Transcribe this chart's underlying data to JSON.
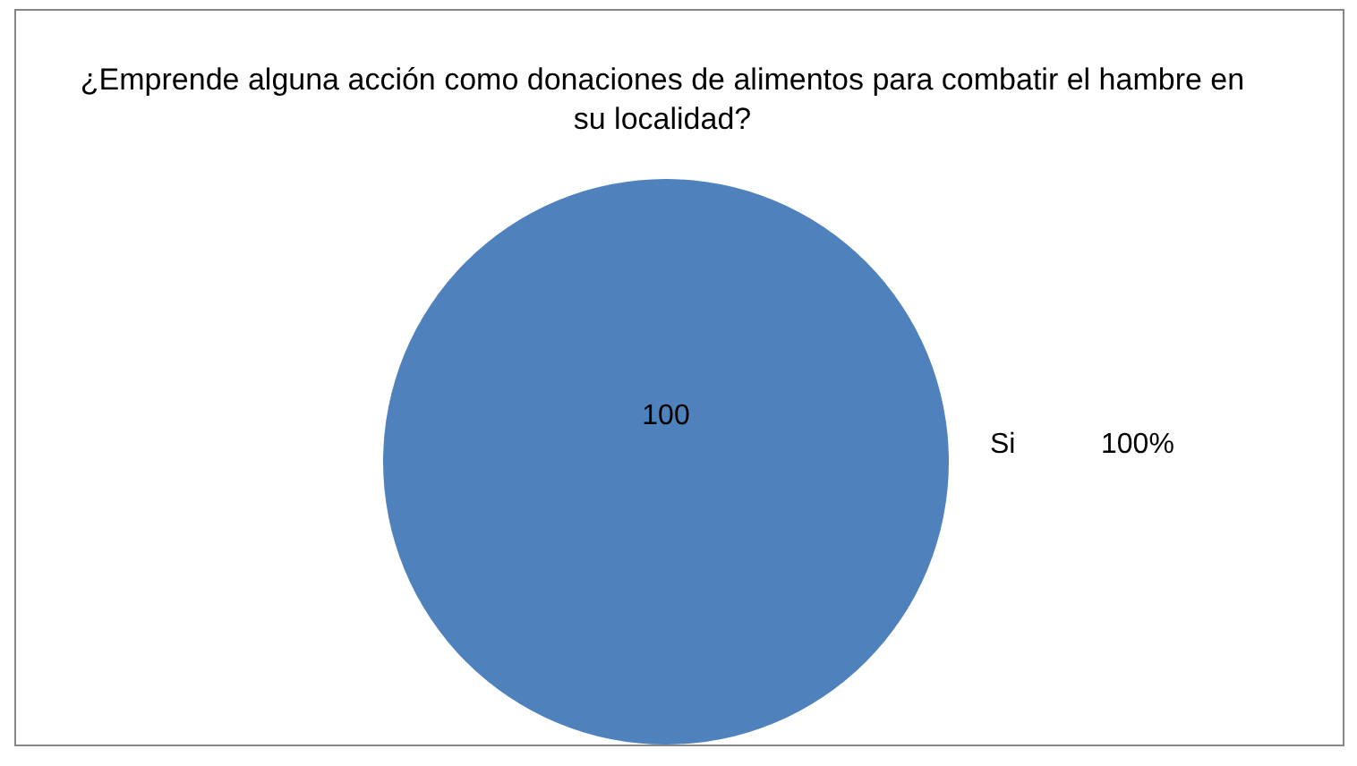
{
  "chart_data": {
    "type": "pie",
    "title": "¿Emprende alguna acción como donaciones de alimentos para combatir el hambre en su localidad?",
    "categories": [
      "Si"
    ],
    "values": [
      100
    ],
    "colors": [
      "#4f81bd"
    ],
    "data_labels": true,
    "annotations": [
      "100%"
    ]
  }
}
